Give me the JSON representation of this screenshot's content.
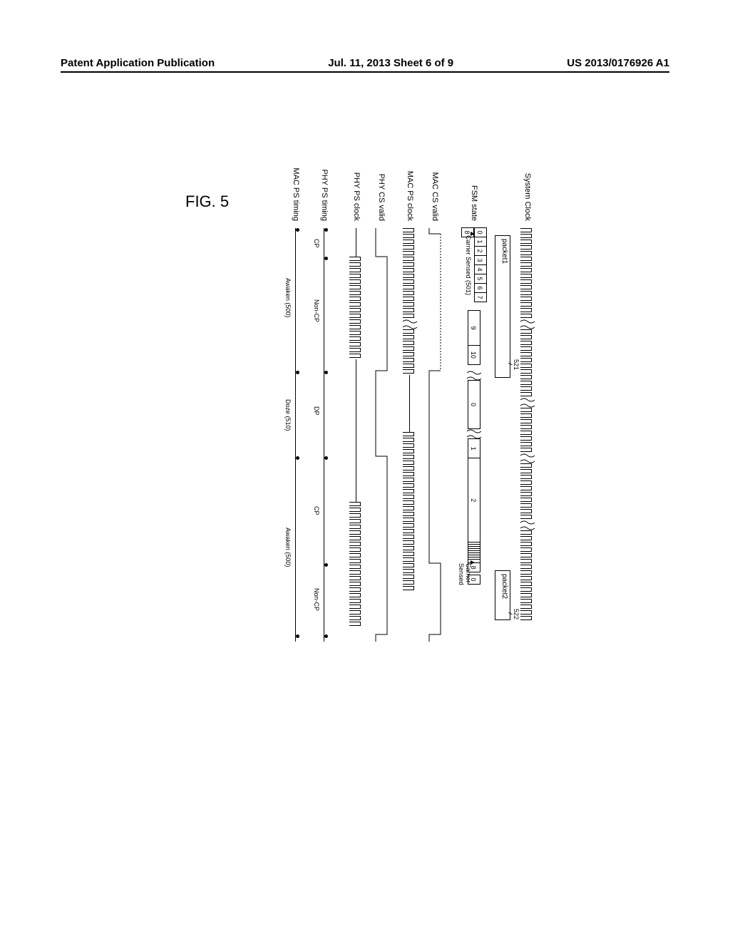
{
  "header": {
    "left": "Patent Application Publication",
    "center": "Jul. 11, 2013  Sheet 6 of 9",
    "right": "US 2013/0176926 A1"
  },
  "figure_title": "FIG. 5",
  "row_labels": {
    "system_clock": "System Clock",
    "packet": "",
    "fsm_state": "FSM state",
    "carrier_sensed": "",
    "mac_cs_valid": "MAC CS valid",
    "mac_ps_clock": "MAC PS clock",
    "phy_cs_valid": "PHY CS valid",
    "phy_ps_clock": "PHY PS clock",
    "phy_ps_timing": "PHY PS timing",
    "mac_ps_timing": "MAC PS timing"
  },
  "packets": {
    "p1": {
      "label": "packet1",
      "ref": "521"
    },
    "p2": {
      "label": "packet2",
      "ref": "522"
    }
  },
  "fsm": {
    "seq1": [
      "0",
      "1",
      "2",
      "3",
      "4",
      "5",
      "6",
      "7",
      "8"
    ],
    "wide1": [
      "9",
      "10"
    ],
    "seq2": [
      "0"
    ],
    "wide2": [
      "1",
      "2"
    ],
    "tail": [
      "8",
      "0"
    ]
  },
  "carrier_sense": {
    "label1": "Carrier Sensed (501)",
    "label2": "Carrier Sensed"
  },
  "phy_ps_timing": {
    "segs": [
      "CP",
      "Non-CP",
      "DP",
      "CP",
      "Non-CP"
    ]
  },
  "mac_ps_timing": {
    "segs": [
      "Awaken (500)",
      "Doze (510)",
      "Awaken (500)"
    ]
  },
  "colors": {
    "line": "#000000",
    "bg": "#ffffff"
  }
}
